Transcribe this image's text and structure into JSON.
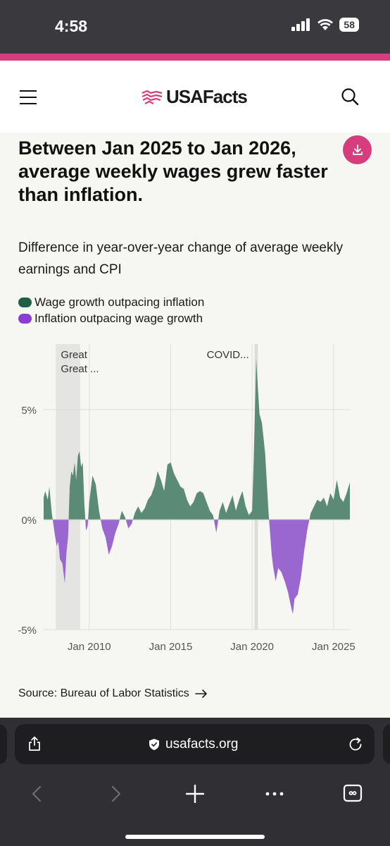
{
  "status_bar": {
    "time": "4:58",
    "battery": "58"
  },
  "header": {
    "logo_text": "USAFacts"
  },
  "article": {
    "headline": "Between Jan 2025 to Jan 2026, average weekly wages grew faster than inflation.",
    "subtitle": "Difference in year-over-year change of average weekly earnings and CPI",
    "source_label": "Source: Bureau of Labor Statistics"
  },
  "legend": [
    {
      "label": "Wage growth outpacing inflation",
      "color": "#1f5e48"
    },
    {
      "label": "Inflation outpacing wage growth",
      "color": "#8a3fd0"
    }
  ],
  "chart_data": {
    "type": "area",
    "title": "Difference in year-over-year change of average weekly earnings and CPI",
    "xlabel": "",
    "ylabel": "",
    "ylim": [
      -5,
      7.5
    ],
    "x_range": [
      2007.2,
      2026.0
    ],
    "y_ticks": [
      {
        "value": 5,
        "label": "5%"
      },
      {
        "value": 0,
        "label": "0%"
      },
      {
        "value": -5,
        "label": "-5%"
      }
    ],
    "x_ticks": [
      {
        "value": 2010,
        "label": "Jan 2010"
      },
      {
        "value": 2015,
        "label": "Jan 2015"
      },
      {
        "value": 2020,
        "label": "Jan 2020"
      },
      {
        "value": 2025,
        "label": "Jan 2025"
      }
    ],
    "grid": true,
    "positive_color": "#5b8a77",
    "negative_color": "#9a66d0",
    "annotations": [
      {
        "label_lines": [
          "Great",
          "Great ..."
        ],
        "start": 2007.95,
        "end": 2009.45,
        "shade": "#e4e4e2"
      },
      {
        "label_lines": [
          "COVID..."
        ],
        "start": 2020.15,
        "end": 2020.35,
        "shade": "#dcdcda"
      }
    ],
    "series": [
      {
        "x": [
          2007.2,
          2007.3,
          2007.45,
          2007.55,
          2007.7,
          2007.85,
          2008.0,
          2008.1,
          2008.2,
          2008.35,
          2008.5,
          2008.6,
          2008.7,
          2008.8,
          2008.9,
          2009.0,
          2009.1,
          2009.2,
          2009.3,
          2009.4,
          2009.5,
          2009.6,
          2009.7,
          2009.8,
          2009.9,
          2010.0,
          2010.1,
          2010.2,
          2010.4,
          2010.6,
          2010.8,
          2011.0,
          2011.2,
          2011.4,
          2011.6,
          2011.8,
          2012.0,
          2012.2,
          2012.4,
          2012.6,
          2012.8,
          2013.0,
          2013.2,
          2013.4,
          2013.6,
          2013.8,
          2014.0,
          2014.2,
          2014.4,
          2014.6,
          2014.8,
          2015.0,
          2015.2,
          2015.4,
          2015.6,
          2015.8,
          2016.0,
          2016.2,
          2016.4,
          2016.6,
          2016.8,
          2017.0,
          2017.2,
          2017.4,
          2017.6,
          2017.8,
          2018.0,
          2018.2,
          2018.4,
          2018.6,
          2018.8,
          2019.0,
          2019.2,
          2019.4,
          2019.6,
          2019.8,
          2020.0,
          2020.1,
          2020.25,
          2020.35,
          2020.45,
          2020.6,
          2020.8,
          2021.0,
          2021.1,
          2021.2,
          2021.3,
          2021.45,
          2021.6,
          2021.8,
          2022.0,
          2022.2,
          2022.4,
          2022.5,
          2022.6,
          2022.8,
          2023.0,
          2023.2,
          2023.4,
          2023.6,
          2023.8,
          2024.0,
          2024.2,
          2024.4,
          2024.6,
          2024.8,
          2025.0,
          2025.2,
          2025.4,
          2025.6,
          2025.8,
          2026.0
        ],
        "y": [
          1.0,
          1.3,
          0.9,
          1.5,
          0.3,
          -0.5,
          -1.2,
          -1.0,
          -1.8,
          -2.0,
          -2.9,
          -1.5,
          -0.8,
          1.5,
          2.2,
          2.0,
          2.6,
          1.8,
          2.9,
          3.1,
          2.4,
          2.6,
          0.7,
          -0.5,
          -0.3,
          0.8,
          1.4,
          2.0,
          1.6,
          0.4,
          -0.4,
          -0.8,
          -1.6,
          -1.2,
          -0.6,
          -0.2,
          0.4,
          0.1,
          -0.4,
          -0.2,
          0.3,
          0.6,
          0.3,
          0.5,
          0.9,
          1.1,
          1.5,
          2.2,
          1.8,
          1.3,
          2.5,
          2.6,
          2.1,
          1.8,
          1.5,
          1.4,
          0.9,
          0.6,
          0.8,
          1.2,
          1.3,
          1.2,
          0.8,
          0.4,
          0.2,
          -0.6,
          0.4,
          0.8,
          0.3,
          0.7,
          1.1,
          0.4,
          0.9,
          1.3,
          0.6,
          0.2,
          0.4,
          2.8,
          7.3,
          6.0,
          4.8,
          4.4,
          3.0,
          0.4,
          -0.6,
          -1.6,
          -2.2,
          -2.8,
          -2.2,
          -2.4,
          -2.8,
          -3.3,
          -4.0,
          -4.3,
          -3.6,
          -3.4,
          -2.6,
          -1.4,
          -0.4,
          0.3,
          0.6,
          0.9,
          0.8,
          1.0,
          0.6,
          1.2,
          0.9,
          1.8,
          1.0,
          0.8,
          1.2,
          1.7
        ]
      }
    ]
  }
}
